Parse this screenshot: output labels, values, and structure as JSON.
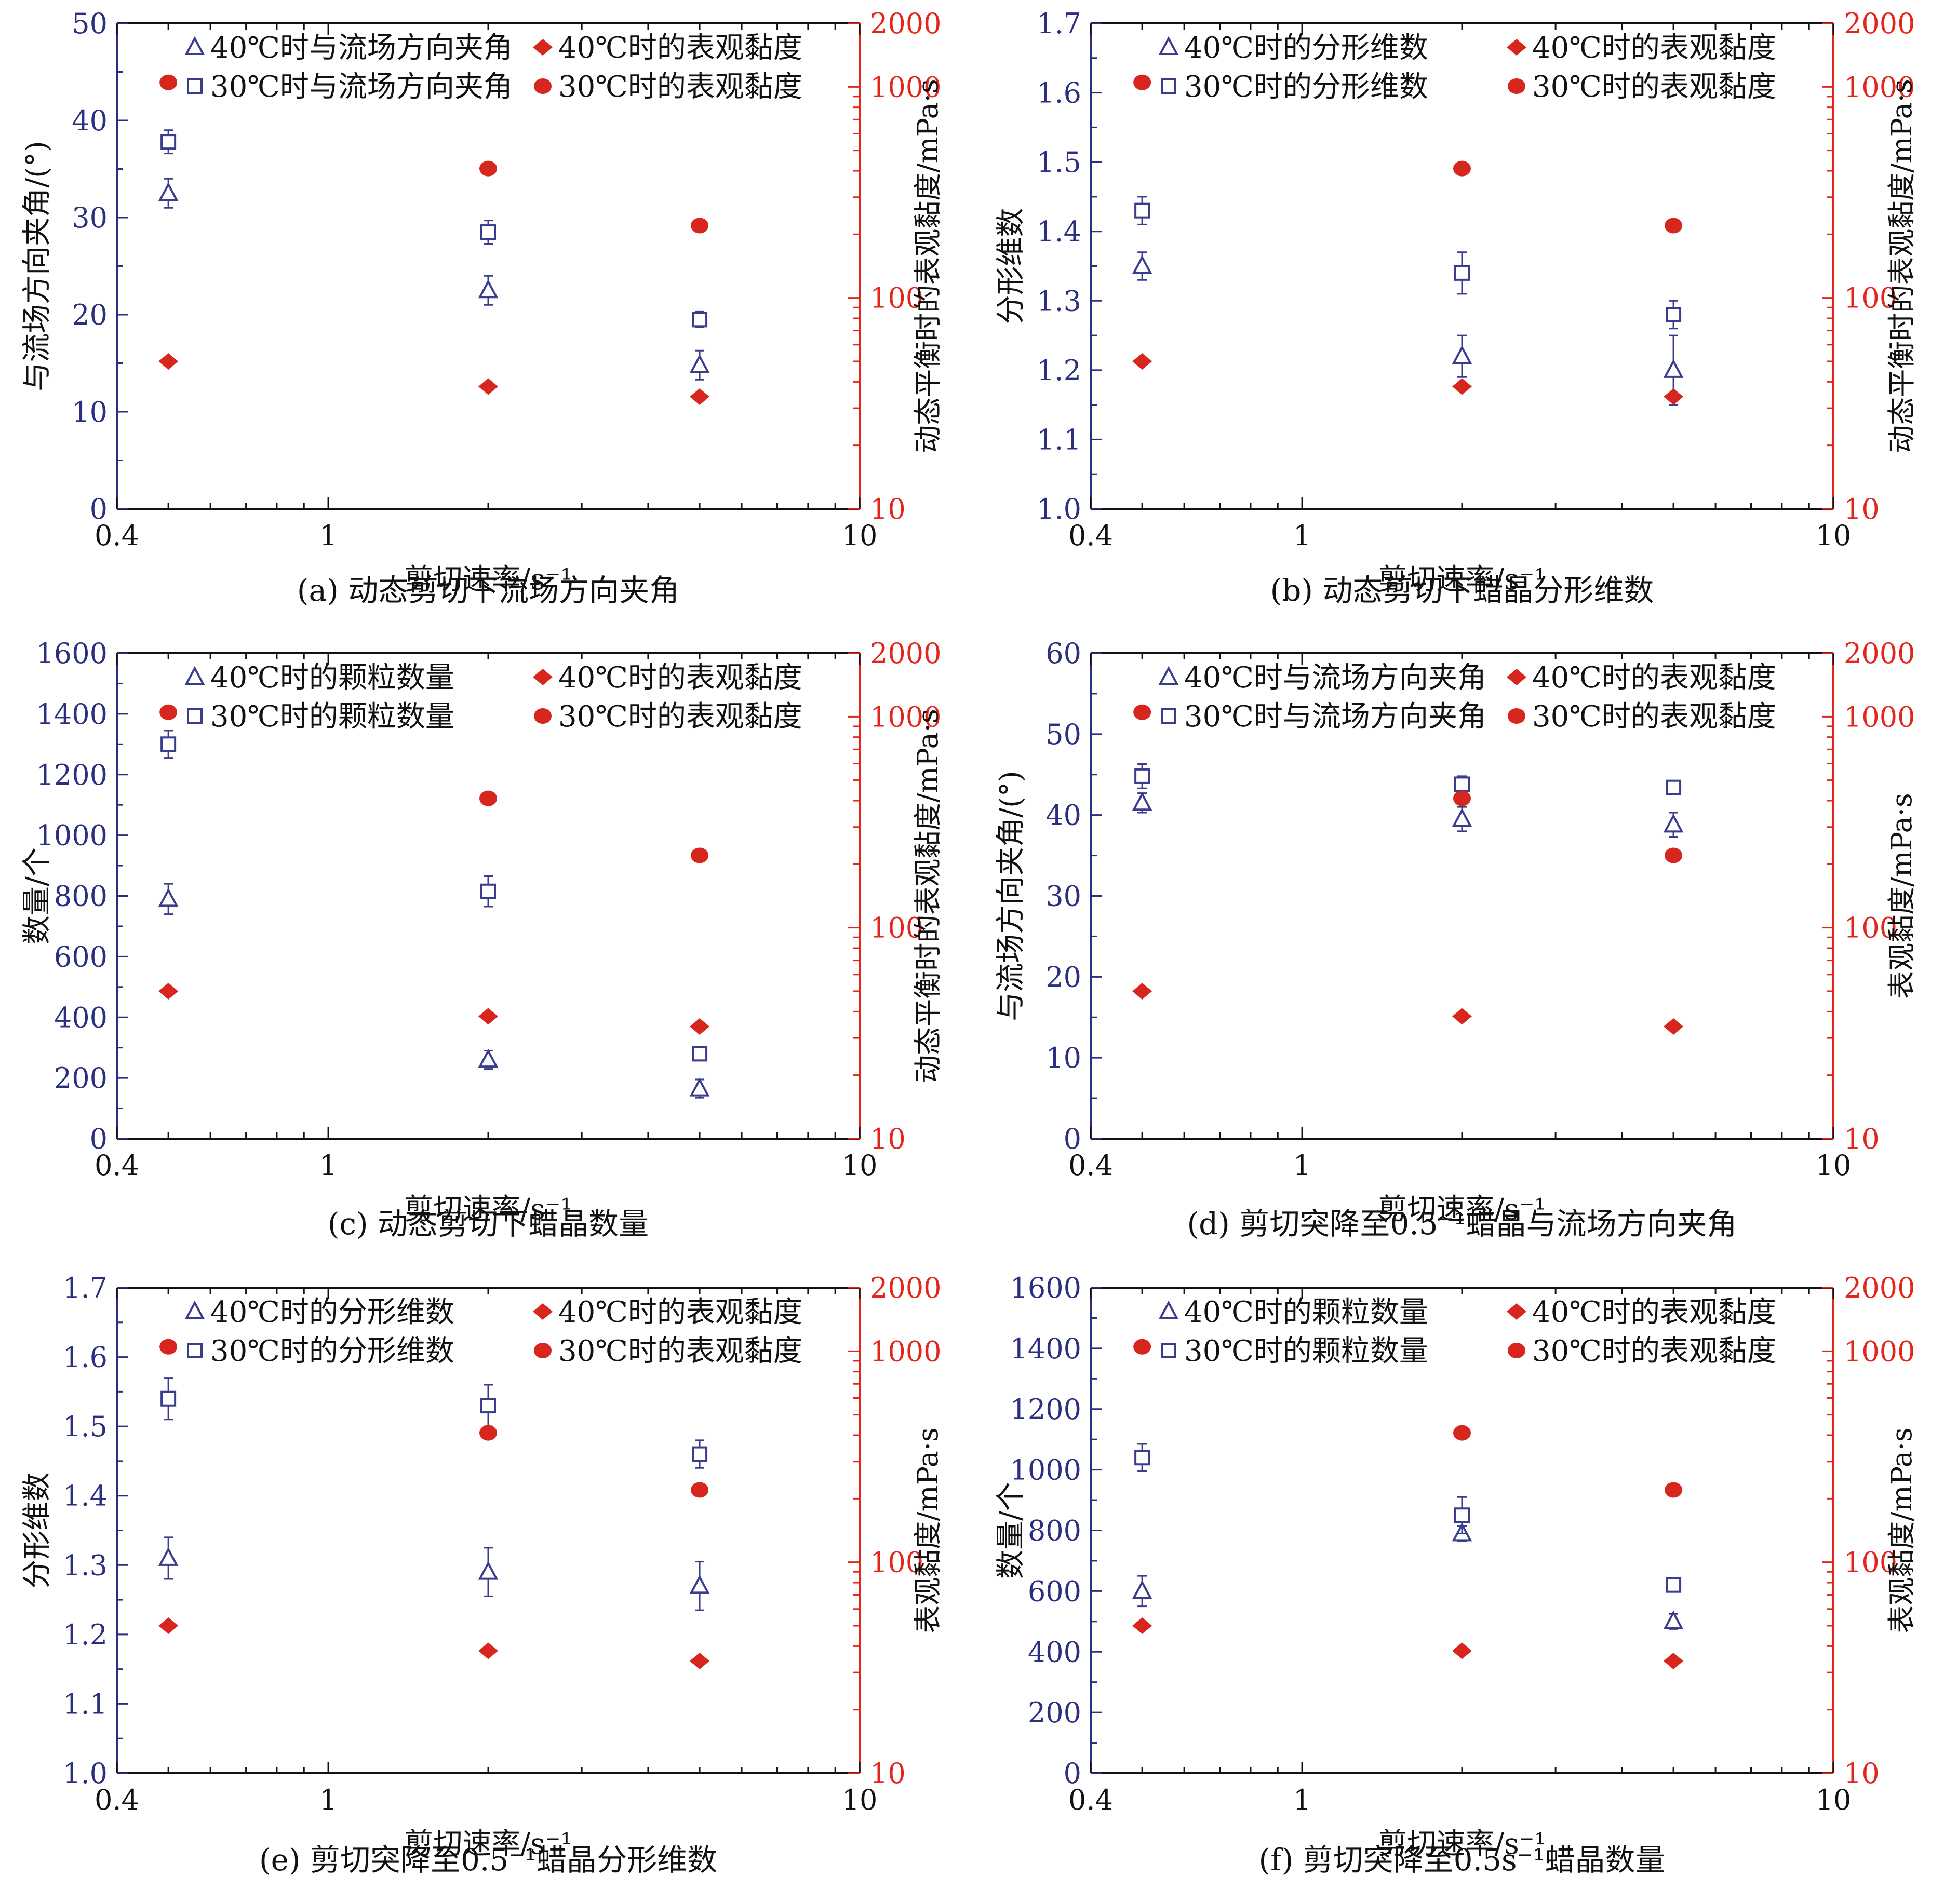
{
  "colors": {
    "left_axis": "#2b2f7f",
    "right_axis": "#e3261c",
    "marker_blue": "#3a3d8c",
    "marker_red": "#d7261e",
    "text": "#111111"
  },
  "x_axis": {
    "scale": "log",
    "xlim": [
      0.4,
      10
    ],
    "tick_labels": [
      "0.4",
      "1",
      "10"
    ],
    "xlabel": "剪切速率/s⁻¹"
  },
  "right_axis": {
    "scale": "log",
    "ylim": [
      10,
      2000
    ],
    "tick_labels": [
      "10",
      "100",
      "1000",
      "2000"
    ]
  },
  "panels": [
    {
      "id": "a",
      "caption": "(a) 动态剪切下流场方向夹角",
      "ylabel_left": "与流场方向夹角/(°)",
      "ylabel_right": "动态平衡时的表观黏度/mPa·s",
      "left_ylim": [
        0,
        50
      ],
      "left_tick_labels": [
        "0",
        "10",
        "20",
        "30",
        "40",
        "50"
      ],
      "legend": [
        "40℃时与流场方向夹角",
        "40℃时的表观黏度",
        "30℃时与流场方向夹角",
        "30℃时的表观黏度"
      ],
      "chart_data": {
        "type": "scatter",
        "x": [
          0.5,
          2,
          5
        ],
        "series": [
          {
            "name": "40℃时与流场方向夹角",
            "axis": "left",
            "marker": "triangle",
            "values": [
              32.5,
              22.5,
              14.8
            ],
            "errors": [
              1.5,
              1.5,
              1.5
            ]
          },
          {
            "name": "30℃时与流场方向夹角",
            "axis": "left",
            "marker": "square",
            "values": [
              37.8,
              28.5,
              19.5
            ],
            "errors": [
              1.2,
              1.2,
              0.8
            ]
          },
          {
            "name": "40℃时的表观黏度",
            "axis": "right",
            "marker": "diamond",
            "values": [
              50,
              38,
              34
            ]
          },
          {
            "name": "30℃时的表观黏度",
            "axis": "right",
            "marker": "circle",
            "values": [
              1050,
              410,
              220
            ]
          }
        ]
      }
    },
    {
      "id": "b",
      "caption": "(b) 动态剪切下蜡晶分形维数",
      "ylabel_left": "分形维数",
      "ylabel_right": "动态平衡时的表观黏度/mPa·s",
      "left_ylim": [
        1.0,
        1.7
      ],
      "left_tick_labels": [
        "1.0",
        "1.1",
        "1.2",
        "1.3",
        "1.4",
        "1.5",
        "1.6",
        "1.7"
      ],
      "legend": [
        "40℃时的分形维数",
        "40℃时的表观黏度",
        "30℃时的分形维数",
        "30℃时的表观黏度"
      ],
      "chart_data": {
        "type": "scatter",
        "x": [
          0.5,
          2,
          5
        ],
        "series": [
          {
            "name": "40℃时的分形维数",
            "axis": "left",
            "marker": "triangle",
            "values": [
              1.35,
              1.22,
              1.2
            ],
            "errors": [
              0.02,
              0.03,
              0.05
            ]
          },
          {
            "name": "30℃时的分形维数",
            "axis": "left",
            "marker": "square",
            "values": [
              1.43,
              1.34,
              1.28
            ],
            "errors": [
              0.02,
              0.03,
              0.02
            ]
          },
          {
            "name": "40℃时的表观黏度",
            "axis": "right",
            "marker": "diamond",
            "values": [
              50,
              38,
              34
            ]
          },
          {
            "name": "30℃时的表观黏度",
            "axis": "right",
            "marker": "circle",
            "values": [
              1050,
              410,
              220
            ]
          }
        ]
      }
    },
    {
      "id": "c",
      "caption": "(c) 动态剪切下蜡晶数量",
      "ylabel_left": "数量/个",
      "ylabel_right": "动态平衡时的表观黏度/mPa·s",
      "left_ylim": [
        0,
        1600
      ],
      "left_tick_labels": [
        "0",
        "200",
        "400",
        "600",
        "800",
        "1000",
        "1200",
        "1400",
        "1600"
      ],
      "legend": [
        "40℃时的颗粒数量",
        "40℃时的表观黏度",
        "30℃时的颗粒数量",
        "30℃时的表观黏度"
      ],
      "chart_data": {
        "type": "scatter",
        "x": [
          0.5,
          2,
          5
        ],
        "series": [
          {
            "name": "40℃时的颗粒数量",
            "axis": "left",
            "marker": "triangle",
            "values": [
              790,
              260,
              165
            ],
            "errors": [
              50,
              30,
              30
            ]
          },
          {
            "name": "30℃时的颗粒数量",
            "axis": "left",
            "marker": "square",
            "values": [
              1300,
              815,
              280
            ],
            "errors": [
              45,
              50,
              20
            ]
          },
          {
            "name": "40℃时的表观黏度",
            "axis": "right",
            "marker": "diamond",
            "values": [
              50,
              38,
              34
            ]
          },
          {
            "name": "30℃时的表观黏度",
            "axis": "right",
            "marker": "circle",
            "values": [
              1050,
              410,
              220
            ]
          }
        ]
      }
    },
    {
      "id": "d",
      "caption": "(d) 剪切突降至0.5⁻¹蜡晶与流场方向夹角",
      "ylabel_left": "与流场方向夹角/(°)",
      "ylabel_right": "表观黏度/mPa·s",
      "left_ylim": [
        0,
        60
      ],
      "left_tick_labels": [
        "0",
        "10",
        "20",
        "30",
        "40",
        "50",
        "60"
      ],
      "legend": [
        "40℃时与流场方向夹角",
        "40℃时的表观黏度",
        "30℃时与流场方向夹角",
        "30℃时的表观黏度"
      ],
      "chart_data": {
        "type": "scatter",
        "x": [
          0.5,
          2,
          5
        ],
        "series": [
          {
            "name": "40℃时与流场方向夹角",
            "axis": "left",
            "marker": "triangle",
            "values": [
              41.5,
              39.5,
              38.8
            ],
            "errors": [
              1.2,
              1.5,
              1.5
            ]
          },
          {
            "name": "30℃时与流场方向夹角",
            "axis": "left",
            "marker": "square",
            "values": [
              44.8,
              43.8,
              43.4
            ],
            "errors": [
              1.5,
              1.0,
              0.8
            ]
          },
          {
            "name": "40℃时的表观黏度",
            "axis": "right",
            "marker": "diamond",
            "values": [
              50,
              38,
              34
            ]
          },
          {
            "name": "30℃时的表观黏度",
            "axis": "right",
            "marker": "circle",
            "values": [
              1050,
              410,
              220
            ]
          }
        ]
      }
    },
    {
      "id": "e",
      "caption": "(e) 剪切突降至0.5⁻¹蜡晶分形维数",
      "ylabel_left": "分形维数",
      "ylabel_right": "表观黏度/mPa·s",
      "left_ylim": [
        1.0,
        1.7
      ],
      "left_tick_labels": [
        "1.0",
        "1.1",
        "1.2",
        "1.3",
        "1.4",
        "1.5",
        "1.6",
        "1.7"
      ],
      "legend": [
        "40℃时的分形维数",
        "40℃时的表观黏度",
        "30℃时的分形维数",
        "30℃时的表观黏度"
      ],
      "chart_data": {
        "type": "scatter",
        "x": [
          0.5,
          2,
          5
        ],
        "series": [
          {
            "name": "40℃时的分形维数",
            "axis": "left",
            "marker": "triangle",
            "values": [
              1.31,
              1.29,
              1.27
            ],
            "errors": [
              0.03,
              0.035,
              0.035
            ]
          },
          {
            "name": "30℃时的分形维数",
            "axis": "left",
            "marker": "square",
            "values": [
              1.54,
              1.53,
              1.46
            ],
            "errors": [
              0.03,
              0.03,
              0.02
            ]
          },
          {
            "name": "40℃时的表观黏度",
            "axis": "right",
            "marker": "diamond",
            "values": [
              50,
              38,
              34
            ]
          },
          {
            "name": "30℃时的表观黏度",
            "axis": "right",
            "marker": "circle",
            "values": [
              1050,
              410,
              220
            ]
          }
        ]
      }
    },
    {
      "id": "f",
      "caption": "(f) 剪切突降至0.5s⁻¹蜡晶数量",
      "ylabel_left": "数量/个",
      "ylabel_right": "表观黏度/mPa·s",
      "left_ylim": [
        0,
        1600
      ],
      "left_tick_labels": [
        "0",
        "200",
        "400",
        "600",
        "800",
        "1000",
        "1200",
        "1400",
        "1600"
      ],
      "legend": [
        "40℃时的颗粒数量",
        "40℃时的表观黏度",
        "30℃时的颗粒数量",
        "30℃时的表观黏度"
      ],
      "chart_data": {
        "type": "scatter",
        "x": [
          0.5,
          2,
          5
        ],
        "series": [
          {
            "name": "40℃时的颗粒数量",
            "axis": "left",
            "marker": "triangle",
            "values": [
              600,
              790,
              500
            ],
            "errors": [
              50,
              25,
              25
            ]
          },
          {
            "name": "30℃时的颗粒数量",
            "axis": "left",
            "marker": "square",
            "values": [
              1040,
              850,
              620
            ],
            "errors": [
              45,
              60,
              15
            ]
          },
          {
            "name": "40℃时的表观黏度",
            "axis": "right",
            "marker": "diamond",
            "values": [
              50,
              38,
              34
            ]
          },
          {
            "name": "30℃时的表观黏度",
            "axis": "right",
            "marker": "circle",
            "values": [
              1050,
              410,
              220
            ]
          }
        ]
      }
    }
  ]
}
